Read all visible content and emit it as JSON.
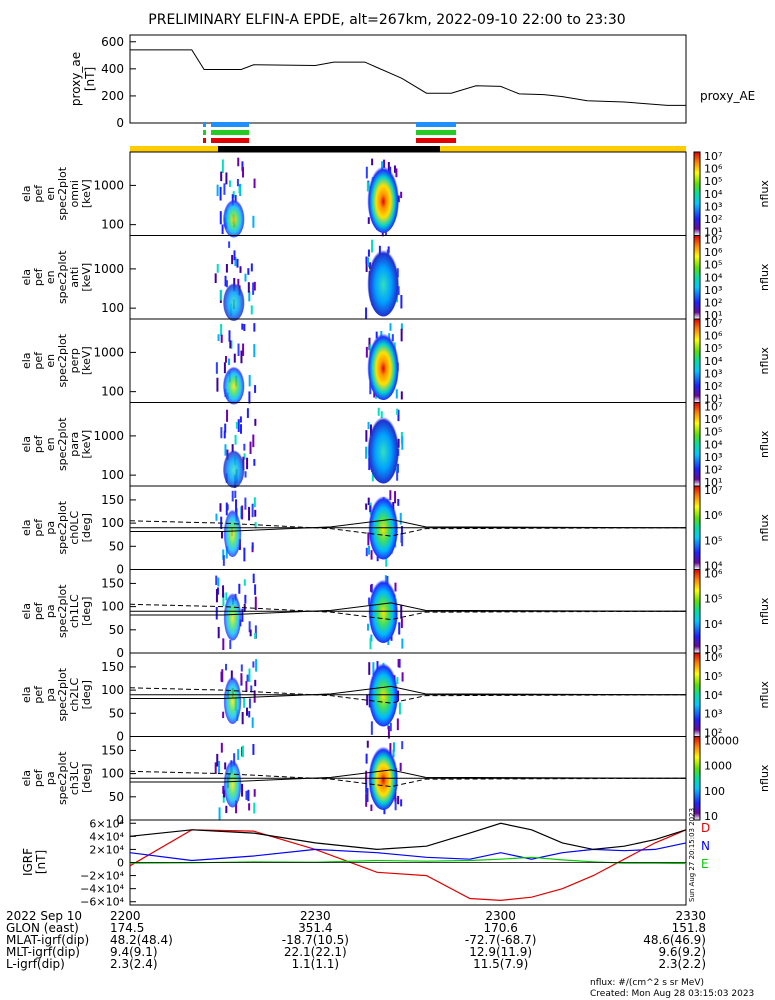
{
  "title": "PRELIMINARY ELFIN-A EPDE, alt=267km, 2022-09-10 22:00 to 23:30",
  "proxy_panel": {
    "ylabel_lines": [
      "proxy_ae",
      "[nT]"
    ],
    "series_label": "proxy_AE",
    "ticks": [
      "600",
      "400",
      "200",
      "0"
    ]
  },
  "spec_panels": [
    {
      "ylabel": [
        "ela",
        "pef",
        "en",
        "spec2plot",
        "omni",
        "[keV]"
      ],
      "ticks": [
        "1000",
        "100"
      ]
    },
    {
      "ylabel": [
        "ela",
        "pef",
        "en",
        "spec2plot",
        "anti",
        "[keV]"
      ],
      "ticks": [
        "1000",
        "100"
      ]
    },
    {
      "ylabel": [
        "ela",
        "pef",
        "en",
        "spec2plot",
        "perp",
        "[keV]"
      ],
      "ticks": [
        "1000",
        "100"
      ]
    },
    {
      "ylabel": [
        "ela",
        "pef",
        "en",
        "spec2plot",
        "para",
        "[keV]"
      ],
      "ticks": [
        "1000",
        "100"
      ]
    },
    {
      "ylabel": [
        "ela",
        "pef",
        "pa",
        "spec2plot",
        "ch0LC",
        "[deg]"
      ],
      "ticks": [
        "150",
        "100",
        "50",
        "0"
      ]
    },
    {
      "ylabel": [
        "ela",
        "pef",
        "pa",
        "spec2plot",
        "ch1LC",
        "[deg]"
      ],
      "ticks": [
        "150",
        "100",
        "50",
        "0"
      ]
    },
    {
      "ylabel": [
        "ela",
        "pef",
        "pa",
        "spec2plot",
        "ch2LC",
        "[deg]"
      ],
      "ticks": [
        "150",
        "100",
        "50",
        "0"
      ]
    },
    {
      "ylabel": [
        "ela",
        "pef",
        "pa",
        "spec2plot",
        "ch3LC",
        "[deg]"
      ],
      "ticks": [
        "150",
        "100",
        "50",
        "0"
      ]
    }
  ],
  "colorbars": [
    {
      "label": "nflux",
      "ticks": [
        "10⁷",
        "10⁶",
        "10⁵",
        "10⁴",
        "10³",
        "10²",
        "10¹"
      ]
    },
    {
      "label": "nflux",
      "ticks": [
        "10⁷",
        "10⁶",
        "10⁵",
        "10⁴",
        "10³",
        "10²",
        "10¹"
      ]
    },
    {
      "label": "nflux",
      "ticks": [
        "10⁷",
        "10⁶",
        "10⁵",
        "10⁴",
        "10³",
        "10²",
        "10¹"
      ]
    },
    {
      "label": "nflux",
      "ticks": [
        "10⁷",
        "10⁶",
        "10⁵",
        "10⁴",
        "10³",
        "10²",
        "10¹"
      ]
    },
    {
      "label": "nflux",
      "ticks": [
        "10⁷",
        "10⁶",
        "10⁵",
        "10⁴"
      ]
    },
    {
      "label": "nflux",
      "ticks": [
        "10⁶",
        "10⁵",
        "10⁴",
        "10³"
      ]
    },
    {
      "label": "nflux",
      "ticks": [
        "10⁶",
        "10⁵",
        "10⁴",
        "10³",
        "10²"
      ]
    },
    {
      "label": "nflux",
      "ticks": [
        "10000",
        "1000",
        "100",
        "10"
      ]
    }
  ],
  "igrf_panel": {
    "ylabel": [
      "IGRF",
      "[nT]"
    ],
    "ticks": [
      "6×10⁴",
      "4×10⁴",
      "2×10⁴",
      "0",
      "−2×10⁴",
      "−4×10⁴",
      "−6×10⁴"
    ],
    "legend": [
      {
        "label": "D",
        "color": "#e00000"
      },
      {
        "label": "N",
        "color": "#0000ff"
      },
      {
        "label": "E",
        "color": "#00cc00"
      }
    ],
    "side_text": "Sun Aug 27 20:15:03 2023"
  },
  "footer": {
    "rows": [
      {
        "label": "2022 Sep 10",
        "values": [
          "2200",
          "2230",
          "2300",
          "2330"
        ]
      },
      {
        "label": "GLON (east)",
        "values": [
          "174.5",
          "351.4",
          "170.6",
          "151.8"
        ]
      },
      {
        "label": "MLAT-igrf(dip)",
        "values": [
          "48.2(48.4)",
          "-18.7(10.5)",
          "-72.7(-68.7)",
          "48.6(46.9)"
        ]
      },
      {
        "label": "MLT-igrf(dip)",
        "values": [
          "9.4(9.1)",
          "22.1(22.1)",
          "12.9(11.9)",
          "9.6(9.2)"
        ]
      },
      {
        "label": "L-igrf(dip)",
        "values": [
          "2.3(2.4)",
          "1.1(1.1)",
          "11.5(7.9)",
          "2.3(2.2)"
        ]
      }
    ],
    "note1": "nflux: #/(cm^2 s sr MeV)",
    "note2": "Created: Mon Aug 28 03:15:03 2023"
  },
  "colors": {
    "orbit_bar": "#ffcc00",
    "science_bar": "#000000",
    "flag_blue": "#1e90ff",
    "flag_green": "#22cc22",
    "flag_red": "#e00000"
  },
  "chart_data": {
    "type": "line",
    "title": "PRELIMINARY ELFIN-A EPDE, alt=267km, 2022-09-10 22:00 to 23:30",
    "xlabel": "2022 Sep 10",
    "x_ticks": [
      "2200",
      "2230",
      "2300",
      "2330"
    ],
    "xlim": [
      "22:00",
      "23:30"
    ],
    "proxy_ae": {
      "ylabel": "proxy_ae [nT]",
      "ylim": [
        0,
        650
      ],
      "x": [
        "22:00",
        "22:10",
        "22:12",
        "22:18",
        "22:20",
        "22:30",
        "22:33",
        "22:38",
        "22:40",
        "22:44",
        "22:48",
        "22:52",
        "22:56",
        "23:00",
        "23:03",
        "23:07",
        "23:10",
        "23:14",
        "23:20",
        "23:27",
        "23:30"
      ],
      "values": [
        540,
        540,
        395,
        395,
        430,
        425,
        450,
        450,
        410,
        330,
        220,
        220,
        275,
        270,
        215,
        210,
        195,
        165,
        155,
        130,
        130
      ]
    },
    "igrf": {
      "ylabel": "IGRF [nT]",
      "ylim": [
        -65000,
        65000
      ],
      "x": [
        "22:00",
        "22:10",
        "22:20",
        "22:30",
        "22:40",
        "22:48",
        "22:55",
        "23:00",
        "23:05",
        "23:10",
        "23:15",
        "23:20",
        "23:25",
        "23:30"
      ],
      "series": [
        {
          "name": "D",
          "values": [
            -5000,
            50000,
            48000,
            20000,
            -15000,
            -20000,
            -55000,
            -58000,
            -53000,
            -40000,
            -20000,
            5000,
            30000,
            50000
          ]
        },
        {
          "name": "N",
          "values": [
            15000,
            3000,
            10000,
            20000,
            15000,
            8000,
            5000,
            15000,
            5000,
            15000,
            20000,
            18000,
            20000,
            30000
          ]
        },
        {
          "name": "E",
          "values": [
            -1000,
            -500,
            1000,
            500,
            3000,
            2000,
            3000,
            5000,
            8000,
            4000,
            1000,
            -1000,
            -1000,
            -1500
          ]
        },
        {
          "name": "",
          "values": [
            40000,
            50000,
            45000,
            30000,
            20000,
            25000,
            45000,
            60000,
            50000,
            30000,
            20000,
            25000,
            35000,
            50000
          ]
        }
      ]
    },
    "spectrograms": {
      "energy_ylim_keV": [
        60,
        5000
      ],
      "pitch_ylim_deg": [
        0,
        180
      ],
      "active_intervals": [
        [
          "22:15",
          "22:19"
        ],
        [
          "22:39",
          "22:43"
        ]
      ]
    }
  }
}
